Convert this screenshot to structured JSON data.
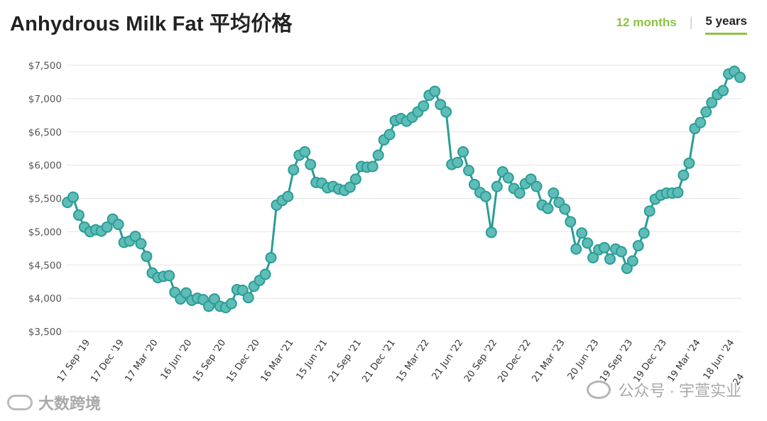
{
  "header": {
    "title": "Anhydrous Milk Fat 平均价格",
    "tabs": [
      {
        "label": "12 months",
        "active": false
      },
      {
        "label": "5 years",
        "active": true
      }
    ]
  },
  "watermarks": {
    "left": "大数跨境",
    "right": "公众号 · 宇萱实业"
  },
  "colors": {
    "line": "#2a9d97",
    "marker_fill": "#5fbcb6",
    "grid": "#e3e3e3",
    "accent": "#8dc43f"
  },
  "chart_data": {
    "type": "line",
    "title": "",
    "xlabel": "",
    "ylabel": "",
    "ylim": [
      3500,
      7500
    ],
    "yticks": [
      3500,
      4000,
      4500,
      5000,
      5500,
      6000,
      6500,
      7000,
      7500
    ],
    "ytick_labels": [
      "$3,500",
      "$4,000",
      "$4,500",
      "$5,000",
      "$5,500",
      "$6,000",
      "$6,500",
      "$7,000",
      "$7,500"
    ],
    "grid": true,
    "x_tick_labels": [
      {
        "index": 3,
        "label": "17 Sep '19"
      },
      {
        "index": 9,
        "label": "17 Dec '19"
      },
      {
        "index": 15,
        "label": "17 Mar '20"
      },
      {
        "index": 21,
        "label": "16 Jun '20"
      },
      {
        "index": 27,
        "label": "15 Sep '20"
      },
      {
        "index": 33,
        "label": "15 Dec '20"
      },
      {
        "index": 39,
        "label": "16 Mar '21"
      },
      {
        "index": 45,
        "label": "15 Jun '21"
      },
      {
        "index": 51,
        "label": "21 Sep '21"
      },
      {
        "index": 57,
        "label": "21 Dec '21"
      },
      {
        "index": 63,
        "label": "15 Mar '22"
      },
      {
        "index": 69,
        "label": "21 Jun '22"
      },
      {
        "index": 75,
        "label": "20 Sep '22"
      },
      {
        "index": 81,
        "label": "20 Dec '22"
      },
      {
        "index": 87,
        "label": "21 Mar '23"
      },
      {
        "index": 93,
        "label": "20 Jun '23"
      },
      {
        "index": 99,
        "label": "19 Sep '23"
      },
      {
        "index": 105,
        "label": "19 Dec '23"
      },
      {
        "index": 111,
        "label": "19 Mar '24"
      },
      {
        "index": 117,
        "label": "18 Jun '24"
      }
    ],
    "x_tick_tail": "24",
    "values": [
      5440,
      5520,
      5250,
      5070,
      5000,
      5030,
      5010,
      5070,
      5190,
      5110,
      4840,
      4860,
      4930,
      4820,
      4630,
      4380,
      4310,
      4330,
      4340,
      4090,
      3990,
      4080,
      3970,
      4000,
      3980,
      3880,
      3990,
      3880,
      3860,
      3920,
      4130,
      4120,
      4010,
      4180,
      4270,
      4360,
      4610,
      5400,
      5470,
      5530,
      5930,
      6150,
      6200,
      6010,
      5740,
      5730,
      5660,
      5680,
      5640,
      5620,
      5670,
      5790,
      5980,
      5970,
      5980,
      6150,
      6380,
      6460,
      6670,
      6700,
      6660,
      6720,
      6800,
      6890,
      7050,
      7110,
      6910,
      6800,
      6010,
      6040,
      6200,
      5920,
      5710,
      5590,
      5530,
      4990,
      5680,
      5900,
      5810,
      5650,
      5580,
      5720,
      5790,
      5680,
      5400,
      5350,
      5580,
      5440,
      5340,
      5150,
      4740,
      4980,
      4830,
      4610,
      4730,
      4760,
      4590,
      4740,
      4700,
      4450,
      4560,
      4790,
      4980,
      5310,
      5490,
      5550,
      5580,
      5580,
      5590,
      5850,
      6030,
      6550,
      6640,
      6800,
      6940,
      7060,
      7120,
      7370,
      7410,
      7320
    ]
  }
}
